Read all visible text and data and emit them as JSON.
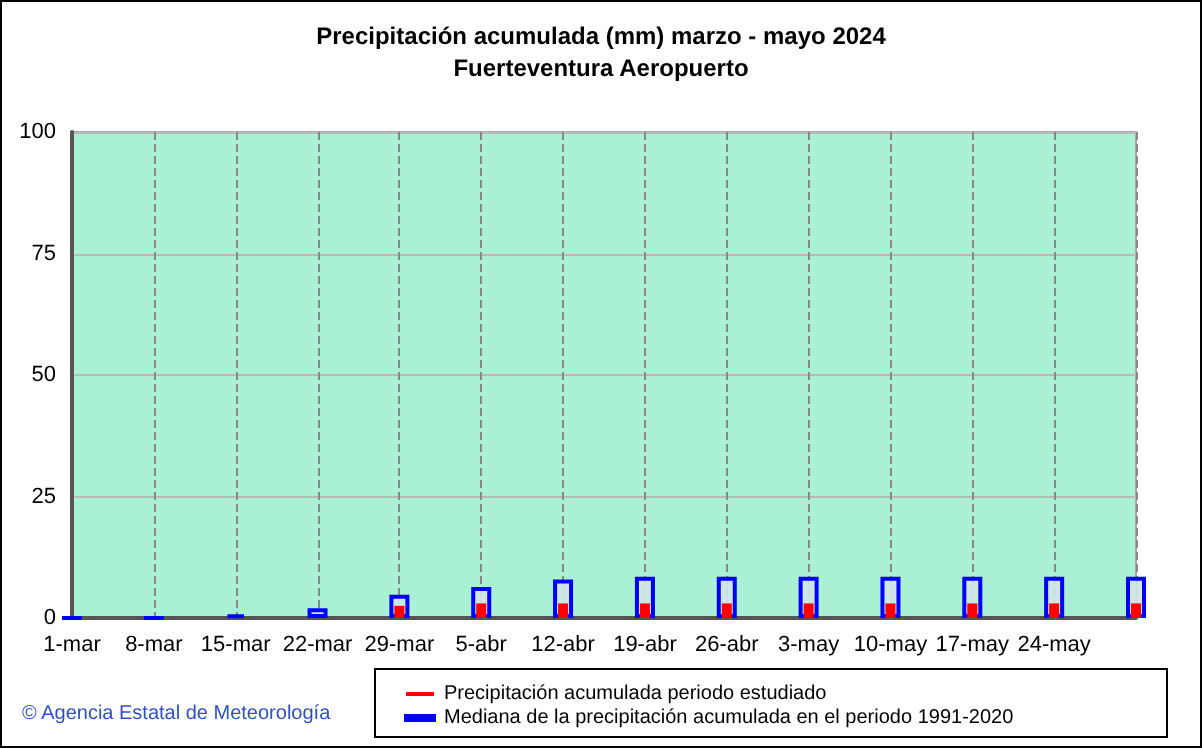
{
  "chart_data": {
    "type": "bar",
    "title": "Precipitación acumulada (mm) marzo - mayo 2024",
    "subtitle": "Fuerteventura Aeropuerto",
    "categories": [
      "1-mar",
      "8-mar",
      "15-mar",
      "22-mar",
      "29-mar",
      "5-abr",
      "12-abr",
      "19-abr",
      "26-abr",
      "3-may",
      "10-may",
      "17-may",
      "24-may",
      null
    ],
    "series": [
      {
        "name": "Mediana de la precipitación acumulada en el periodo 1991-2020",
        "color": "#0000ff",
        "values": [
          0,
          0,
          0.7,
          2,
          4.8,
          6.4,
          7.9,
          8.5,
          8.5,
          8.5,
          8.5,
          8.5,
          8.5,
          8.5
        ]
      },
      {
        "name": "Precipitación acumulada periodo estudiado",
        "color": "#ff0000",
        "values": [
          0,
          0,
          0,
          0,
          2.5,
          3,
          3,
          3,
          3,
          3,
          3,
          3,
          3,
          3
        ]
      }
    ],
    "ylim": [
      0,
      100
    ],
    "yticks": [
      0,
      25,
      50,
      75,
      100
    ],
    "grid": true,
    "legend": "bottom",
    "annotations": [
      "© Agencia Estatal de Meteorología"
    ]
  }
}
